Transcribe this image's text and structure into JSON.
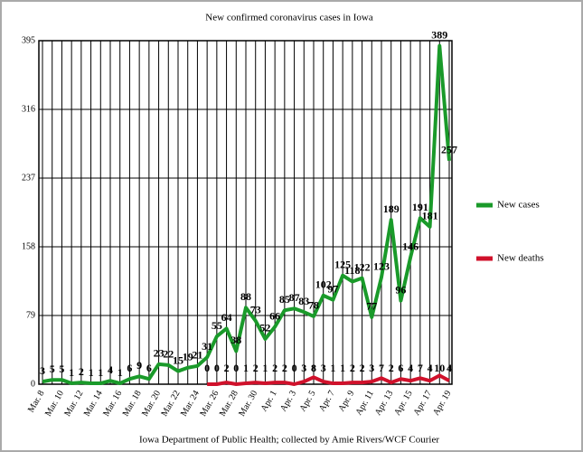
{
  "chart_data": {
    "type": "line",
    "title": "New confirmed coronavirus cases in Iowa",
    "source": "Iowa Department of Public Health; collected by Amie Rivers/WCF Courier",
    "categories": [
      "Mar. 8",
      null,
      "Mar. 10",
      null,
      "Mar. 12",
      null,
      "Mar. 14",
      null,
      "Mar. 16",
      null,
      "Mar. 18",
      null,
      "Mar. 20",
      null,
      "Mar. 22",
      null,
      "Mar. 24",
      null,
      "Mar. 26",
      null,
      "Mar. 28",
      null,
      "Mar. 30",
      null,
      "Apr. 1",
      null,
      "Apr. 3",
      null,
      "Apr. 5",
      null,
      "Apr. 7",
      null,
      "Apr. 9",
      null,
      "Apr. 11",
      null,
      "Apr. 13",
      null,
      "Apr. 15",
      null,
      "Apr. 17",
      null,
      "Apr. 19"
    ],
    "series": [
      {
        "name": "New cases",
        "color": "#1a9a2a",
        "values": [
          3,
          5,
          5,
          1,
          2,
          1,
          1,
          4,
          1,
          6,
          9,
          6,
          23,
          22,
          15,
          19,
          21,
          31,
          55,
          64,
          38,
          88,
          73,
          52,
          66,
          85,
          87,
          83,
          78,
          102,
          97,
          125,
          118,
          122,
          77,
          123,
          189,
          96,
          146,
          191,
          181,
          389,
          257
        ]
      },
      {
        "name": "New deaths",
        "color": "#d0112b",
        "values": [
          null,
          null,
          null,
          null,
          null,
          null,
          null,
          null,
          null,
          null,
          null,
          null,
          null,
          null,
          null,
          null,
          null,
          0,
          0,
          2,
          0,
          1,
          2,
          1,
          2,
          2,
          0,
          3,
          8,
          3,
          1,
          1,
          2,
          2,
          3,
          7,
          2,
          6,
          4,
          7,
          4,
          10,
          4
        ]
      }
    ],
    "ylim": [
      0,
      395
    ],
    "yticks": [
      0,
      79,
      158,
      237,
      316,
      395
    ],
    "grid": true,
    "legend": "right"
  }
}
